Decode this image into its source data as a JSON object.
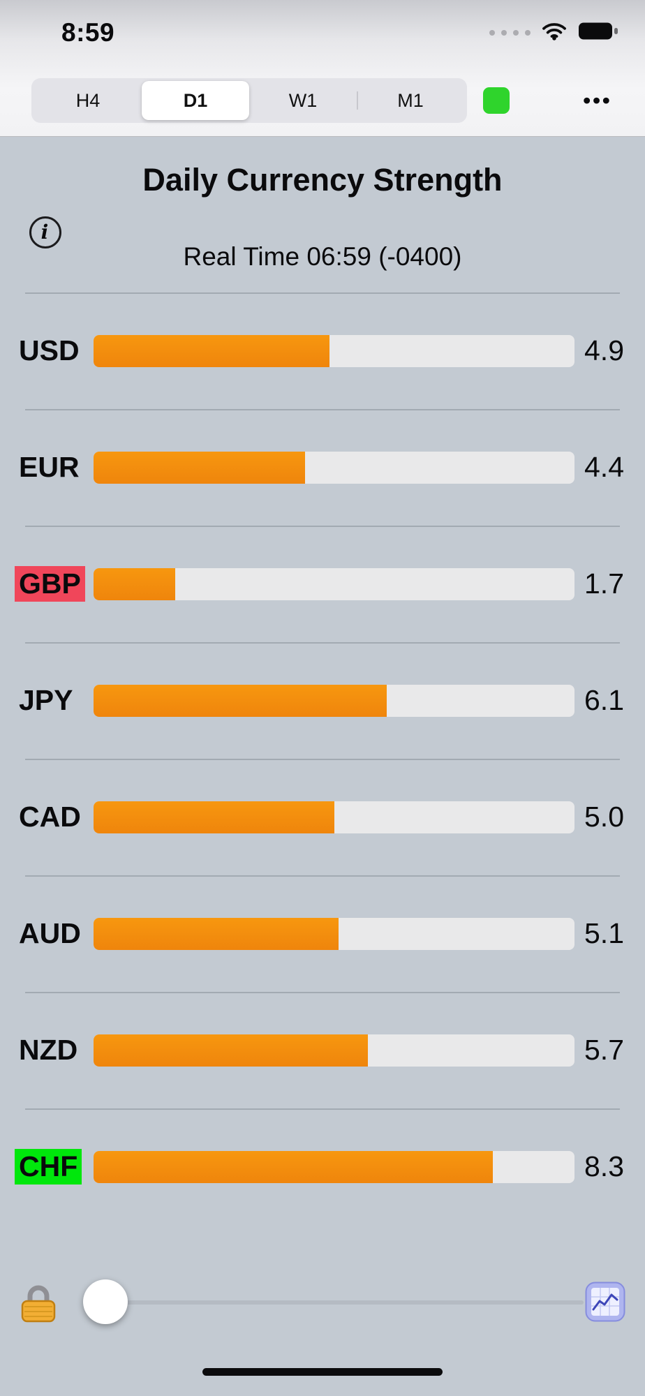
{
  "status_bar": {
    "time": "8:59"
  },
  "toolbar": {
    "timeframes": [
      {
        "label": "H4",
        "selected": false
      },
      {
        "label": "D1",
        "selected": true
      },
      {
        "label": "W1",
        "selected": false
      },
      {
        "label": "M1",
        "selected": false
      }
    ],
    "indicator_color": "#2fd42c",
    "more_label": "•••"
  },
  "header": {
    "title": "Daily Currency Strength",
    "subtitle": "Real Time 06:59 (-0400)",
    "info_glyph": "i"
  },
  "chart_data": {
    "type": "bar",
    "orientation": "horizontal",
    "title": "Daily Currency Strength",
    "categories": [
      "USD",
      "EUR",
      "GBP",
      "JPY",
      "CAD",
      "AUD",
      "NZD",
      "CHF"
    ],
    "values": [
      4.9,
      4.4,
      1.7,
      6.1,
      5.0,
      5.1,
      5.7,
      8.3
    ],
    "value_range": [
      0,
      10
    ],
    "bar_color": "#F28C0E",
    "track_color": "#E9E9EA",
    "label_highlights": {
      "GBP": "#F0465A",
      "CHF": "#00E70C"
    },
    "grid": false,
    "legend": false
  },
  "rows": [
    {
      "label": "USD",
      "value": "4.9"
    },
    {
      "label": "EUR",
      "value": "4.4"
    },
    {
      "label": "GBP",
      "value": "1.7",
      "label_style": "background:#F0465A"
    },
    {
      "label": "JPY",
      "value": "6.1"
    },
    {
      "label": "CAD",
      "value": "5.0"
    },
    {
      "label": "AUD",
      "value": "5.1"
    },
    {
      "label": "NZD",
      "value": "5.7"
    },
    {
      "label": "CHF",
      "value": "8.3",
      "label_style": "background:#00E70C"
    }
  ],
  "footer": {
    "slider_position_pct": 0
  },
  "icons": {
    "cellular": "four-dots",
    "wifi": "wifi-arcs",
    "battery": "battery-full",
    "info": "circled-i",
    "status_indicator": "green-rounded-square",
    "more": "horizontal-ellipsis",
    "lock": "padlock",
    "chart": "line-chart-grid",
    "slider_thumb": "circle",
    "home": "home-indicator-bar"
  }
}
